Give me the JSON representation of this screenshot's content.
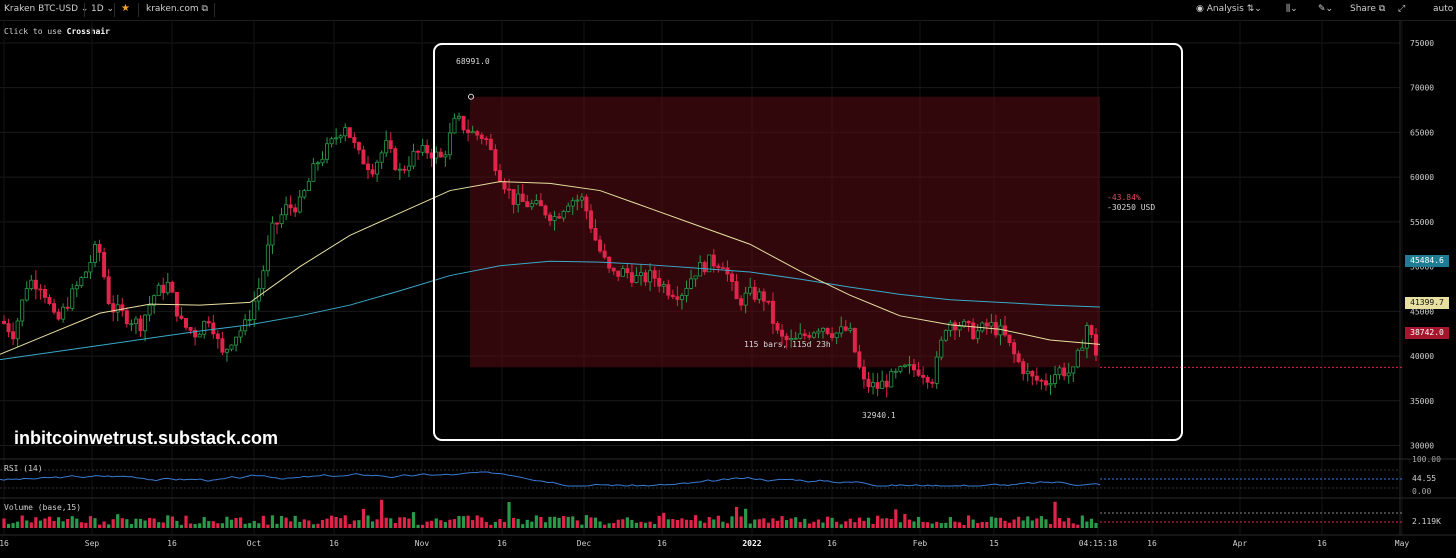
{
  "toolbar": {
    "symbol": "Kraken BTC-USD",
    "interval": "1D",
    "source": "kraken.com",
    "analysis": "Analysis",
    "share": "Share",
    "auto": "auto"
  },
  "hint": {
    "prefix": "Click to use ",
    "action": "Crosshair"
  },
  "watermark": "inbitcoinwetrust.substack.com",
  "chart_data": {
    "type": "candlestick",
    "x_ticks": [
      "16",
      "Sep",
      "16",
      "Oct",
      "16",
      "Nov",
      "16",
      "Dec",
      "16",
      "2022",
      "16",
      "Feb",
      "15",
      "04:15:18",
      "16",
      "Apr",
      "16",
      "May"
    ],
    "y_ticks": [
      30000,
      35000,
      40000,
      45000,
      50000,
      55000,
      60000,
      65000,
      70000,
      75000
    ],
    "ylim": [
      29500,
      76000
    ],
    "series": [
      {
        "name": "price",
        "approx_close_path": [
          [
            1,
            44000
          ],
          [
            14,
            42500
          ],
          [
            28,
            48500
          ],
          [
            42,
            48000
          ],
          [
            56,
            43500
          ],
          [
            70,
            46500
          ],
          [
            84,
            49000
          ],
          [
            98,
            52500
          ],
          [
            110,
            45500
          ],
          [
            125,
            44500
          ],
          [
            140,
            43500
          ],
          [
            155,
            47000
          ],
          [
            168,
            48000
          ],
          [
            182,
            43500
          ],
          [
            196,
            42500
          ],
          [
            210,
            44500
          ],
          [
            222,
            40000
          ],
          [
            232,
            42000
          ],
          [
            246,
            43500
          ],
          [
            260,
            48000
          ],
          [
            272,
            54000
          ],
          [
            286,
            56500
          ],
          [
            300,
            57000
          ],
          [
            316,
            61500
          ],
          [
            330,
            63500
          ],
          [
            345,
            66000
          ],
          [
            358,
            62500
          ],
          [
            372,
            61000
          ],
          [
            386,
            63500
          ],
          [
            400,
            60500
          ],
          [
            414,
            62500
          ],
          [
            428,
            63000
          ],
          [
            442,
            62000
          ],
          [
            456,
            66500
          ],
          [
            470,
            65000
          ],
          [
            485,
            64500
          ],
          [
            499,
            60500
          ],
          [
            513,
            57500
          ],
          [
            527,
            57000
          ],
          [
            541,
            56500
          ],
          [
            555,
            55500
          ],
          [
            569,
            57500
          ],
          [
            583,
            57500
          ],
          [
            597,
            52500
          ],
          [
            611,
            49000
          ],
          [
            625,
            49500
          ],
          [
            639,
            48500
          ],
          [
            653,
            49000
          ],
          [
            667,
            47500
          ],
          [
            681,
            47000
          ],
          [
            695,
            49500
          ],
          [
            709,
            50500
          ],
          [
            723,
            50500
          ],
          [
            737,
            46000
          ],
          [
            751,
            47000
          ],
          [
            765,
            46500
          ],
          [
            779,
            42000
          ],
          [
            793,
            41500
          ],
          [
            807,
            42500
          ],
          [
            821,
            43500
          ],
          [
            835,
            42500
          ],
          [
            849,
            43000
          ],
          [
            863,
            37000
          ],
          [
            877,
            36500
          ],
          [
            891,
            37500
          ],
          [
            905,
            38500
          ],
          [
            919,
            38500
          ],
          [
            933,
            37500
          ],
          [
            947,
            44000
          ],
          [
            961,
            43500
          ],
          [
            975,
            42500
          ],
          [
            989,
            43500
          ],
          [
            1003,
            42500
          ],
          [
            1017,
            39500
          ],
          [
            1031,
            37500
          ],
          [
            1045,
            37000
          ],
          [
            1059,
            38500
          ],
          [
            1073,
            38000
          ],
          [
            1087,
            43500
          ],
          [
            1101,
            38742
          ]
        ]
      },
      {
        "name": "MA short",
        "color": "#e8e0a0",
        "values": [
          [
            0,
            40200
          ],
          [
            50,
            42500
          ],
          [
            100,
            44800
          ],
          [
            150,
            45800
          ],
          [
            200,
            45700
          ],
          [
            250,
            46000
          ],
          [
            300,
            50000
          ],
          [
            350,
            53500
          ],
          [
            400,
            56000
          ],
          [
            450,
            58500
          ],
          [
            500,
            59500
          ],
          [
            550,
            59300
          ],
          [
            600,
            58500
          ],
          [
            650,
            56500
          ],
          [
            700,
            54500
          ],
          [
            750,
            52500
          ],
          [
            800,
            49500
          ],
          [
            850,
            46800
          ],
          [
            900,
            44500
          ],
          [
            950,
            43500
          ],
          [
            1000,
            43000
          ],
          [
            1050,
            41800
          ],
          [
            1100,
            41300
          ]
        ]
      },
      {
        "name": "MA long",
        "color": "#3aa9c8",
        "values": [
          [
            0,
            39600
          ],
          [
            50,
            40400
          ],
          [
            100,
            41200
          ],
          [
            150,
            42000
          ],
          [
            200,
            42800
          ],
          [
            250,
            43500
          ],
          [
            300,
            44500
          ],
          [
            350,
            45700
          ],
          [
            400,
            47300
          ],
          [
            450,
            49000
          ],
          [
            500,
            50100
          ],
          [
            550,
            50600
          ],
          [
            600,
            50500
          ],
          [
            650,
            50200
          ],
          [
            700,
            49800
          ],
          [
            750,
            49400
          ],
          [
            800,
            48600
          ],
          [
            850,
            47700
          ],
          [
            900,
            46900
          ],
          [
            950,
            46300
          ],
          [
            1000,
            46000
          ],
          [
            1050,
            45700
          ],
          [
            1100,
            45484.6
          ]
        ]
      }
    ],
    "annotations": {
      "high_label": "68991.0",
      "low_label": "32940.1",
      "change_pct": "-43.84%",
      "change_abs": "-30250 USD",
      "bars_label": "115 bars, 115d 23h"
    },
    "last_values": {
      "ma_long": "45484.6",
      "ma_short": "41399.7",
      "price": "38742.0"
    },
    "range_box": {
      "high": 68991.0,
      "low": 38742.0
    },
    "indicators": {
      "rsi": {
        "label": "RSI (14)",
        "value": "44.55",
        "top": "100.00",
        "bottom": "0.00"
      },
      "volume": {
        "label": "Volume (base,15)",
        "value": "2.119K"
      }
    }
  }
}
